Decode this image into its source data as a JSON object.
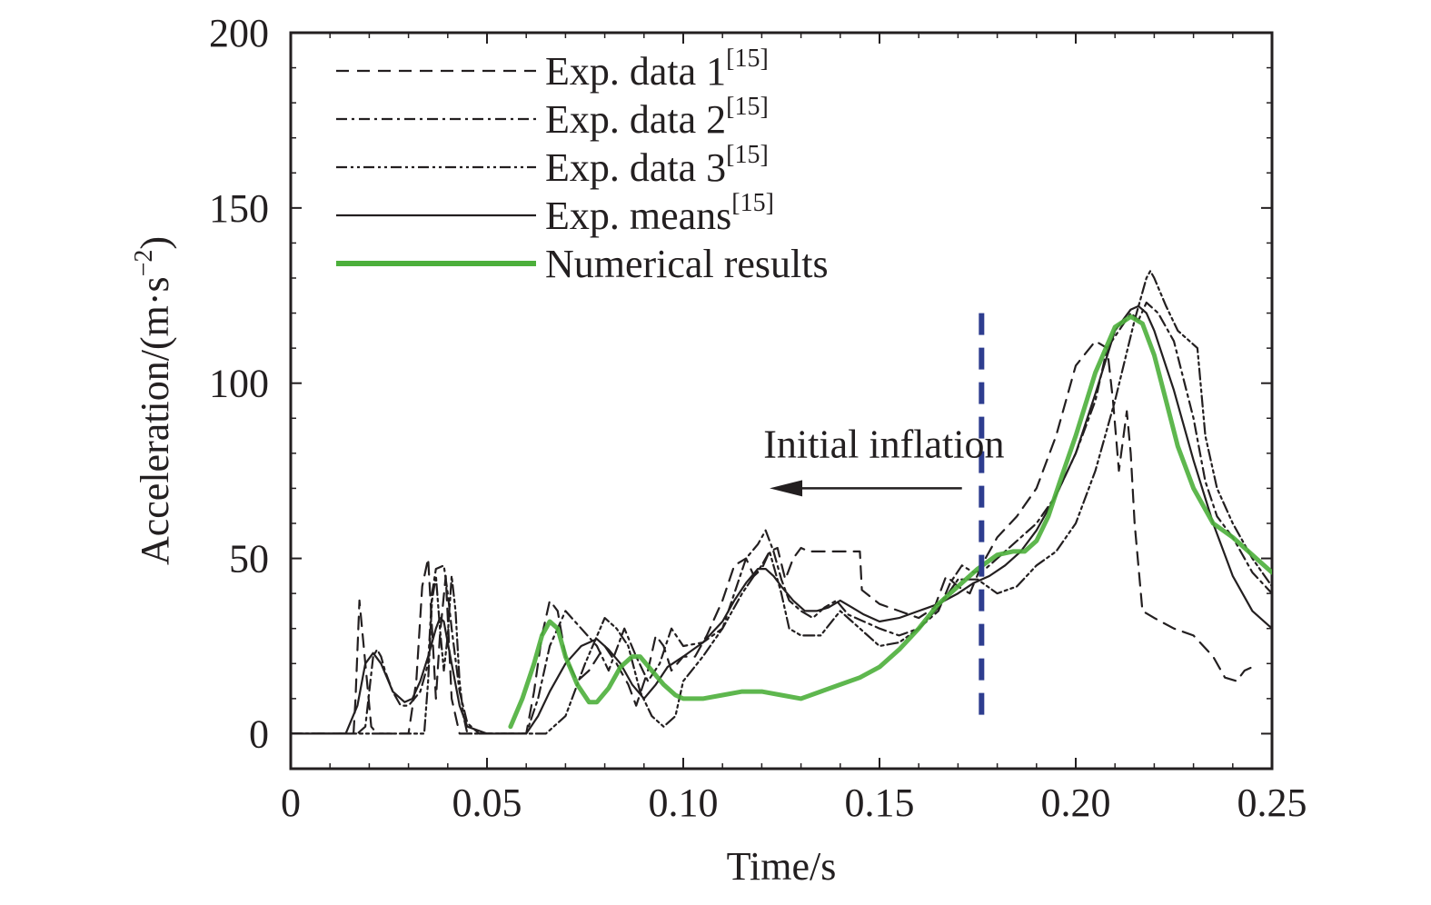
{
  "chart_data": {
    "type": "line",
    "title": "",
    "xlabel": "Time/s",
    "ylabel": "Acceleration/(m·s",
    "ylabel_exp": "−2",
    "ylabel_close": ")",
    "xlim": [
      0,
      0.25
    ],
    "ylim": [
      -10,
      200
    ],
    "xticks": [
      0,
      0.05,
      0.1,
      0.15,
      0.2,
      0.25
    ],
    "xtick_labels": [
      "0",
      "0.05",
      "0.10",
      "0.15",
      "0.20",
      "0.25"
    ],
    "yticks": [
      0,
      50,
      100,
      150,
      200
    ],
    "ytick_labels": [
      "0",
      "50",
      "100",
      "150",
      "200"
    ],
    "grid": false,
    "legend_position": "top-left",
    "annotation": {
      "text": "Initial inflation",
      "marker_x": 0.176,
      "marker_y_range": [
        4,
        120
      ],
      "arrow_from_x": 0.171,
      "arrow_to_x": 0.122,
      "arrow_y": 70,
      "marker_color": "#2e3d8f"
    },
    "series": [
      {
        "name": "Exp. data 1",
        "ref": "[15]",
        "style": "dashed",
        "color": "#231f20",
        "x": [
          0,
          0.016,
          0.0165,
          0.0175,
          0.019,
          0.0205,
          0.022,
          0.03,
          0.032,
          0.0335,
          0.035,
          0.036,
          0.037,
          0.038,
          0.0395,
          0.041,
          0.043,
          0.05,
          0.06,
          0.062,
          0.064,
          0.066,
          0.068,
          0.07,
          0.073,
          0.076,
          0.08,
          0.083,
          0.086,
          0.088,
          0.091,
          0.093,
          0.095,
          0.097,
          0.1,
          0.103,
          0.106,
          0.11,
          0.113,
          0.116,
          0.118,
          0.12,
          0.122,
          0.124,
          0.126,
          0.128,
          0.13,
          0.132,
          0.135,
          0.14,
          0.145,
          0.1455,
          0.15,
          0.155,
          0.16,
          0.164,
          0.167,
          0.17,
          0.173,
          0.176,
          0.18,
          0.185,
          0.19,
          0.195,
          0.2,
          0.205,
          0.208,
          0.2095,
          0.211,
          0.213,
          0.214,
          0.215,
          0.217,
          0.22,
          0.225,
          0.23,
          0.235,
          0.238,
          0.241,
          0.243,
          0.245
        ],
        "values": [
          0,
          0,
          10,
          38,
          20,
          2,
          0,
          0,
          15,
          42,
          50,
          30,
          10,
          28,
          45,
          10,
          0,
          0,
          0,
          12,
          28,
          38,
          35,
          22,
          15,
          18,
          25,
          20,
          14,
          8,
          18,
          28,
          25,
          18,
          22,
          22,
          28,
          38,
          48,
          50,
          45,
          47,
          52,
          53,
          44,
          50,
          53,
          52,
          52,
          52,
          52,
          41,
          37,
          35,
          33,
          36,
          45,
          42,
          40,
          48,
          56,
          62,
          70,
          85,
          105,
          112,
          110,
          95,
          75,
          92,
          80,
          60,
          35,
          33,
          30,
          28,
          22,
          16,
          15,
          18,
          19
        ]
      },
      {
        "name": "Exp. data 2",
        "ref": "[15]",
        "style": "dashdot",
        "color": "#231f20",
        "x": [
          0,
          0.017,
          0.019,
          0.02,
          0.021,
          0.022,
          0.023,
          0.024,
          0.026,
          0.028,
          0.03,
          0.033,
          0.035,
          0.036,
          0.037,
          0.039,
          0.04,
          0.041,
          0.043,
          0.045,
          0.048,
          0.05,
          0.054,
          0.06,
          0.063,
          0.066,
          0.07,
          0.074,
          0.078,
          0.081,
          0.085,
          0.088,
          0.091,
          0.094,
          0.097,
          0.1,
          0.105,
          0.11,
          0.113,
          0.116,
          0.119,
          0.121,
          0.123,
          0.125,
          0.127,
          0.13,
          0.133,
          0.136,
          0.139,
          0.142,
          0.146,
          0.15,
          0.155,
          0.16,
          0.165,
          0.168,
          0.171,
          0.174,
          0.177,
          0.18,
          0.185,
          0.19,
          0.195,
          0.2,
          0.205,
          0.208,
          0.211,
          0.214,
          0.216,
          0.218,
          0.221,
          0.225,
          0.23,
          0.233,
          0.236,
          0.24,
          0.245,
          0.25
        ],
        "values": [
          0,
          0,
          2,
          12,
          22,
          24,
          22,
          18,
          12,
          8,
          8,
          12,
          20,
          40,
          47,
          48,
          40,
          30,
          12,
          3,
          0,
          0,
          0,
          0,
          10,
          25,
          35,
          30,
          25,
          18,
          30,
          22,
          15,
          20,
          30,
          25,
          26,
          30,
          40,
          50,
          54,
          58,
          52,
          44,
          38,
          35,
          33,
          36,
          38,
          34,
          32,
          30,
          28,
          30,
          35,
          43,
          48,
          46,
          47,
          50,
          55,
          60,
          68,
          80,
          95,
          110,
          115,
          120,
          118,
          123,
          120,
          112,
          90,
          72,
          62,
          56,
          46,
          40
        ]
      },
      {
        "name": "Exp. data 3",
        "ref": "[15]",
        "style": "dashdotdot",
        "color": "#231f20",
        "x": [
          0,
          0.034,
          0.035,
          0.036,
          0.037,
          0.038,
          0.039,
          0.04,
          0.041,
          0.042,
          0.043,
          0.044,
          0.045,
          0.05,
          0.065,
          0.07,
          0.075,
          0.08,
          0.083,
          0.086,
          0.089,
          0.092,
          0.095,
          0.098,
          0.1,
          0.105,
          0.11,
          0.115,
          0.118,
          0.12,
          0.122,
          0.125,
          0.127,
          0.13,
          0.135,
          0.14,
          0.145,
          0.15,
          0.155,
          0.16,
          0.165,
          0.17,
          0.175,
          0.18,
          0.185,
          0.19,
          0.195,
          0.2,
          0.205,
          0.21,
          0.215,
          0.218,
          0.219,
          0.22,
          0.223,
          0.226,
          0.229,
          0.231,
          0.233,
          0.236,
          0.24,
          0.245,
          0.25
        ],
        "values": [
          0,
          0,
          15,
          38,
          45,
          30,
          18,
          28,
          45,
          35,
          15,
          5,
          0,
          0,
          0,
          5,
          20,
          33,
          30,
          25,
          12,
          5,
          2,
          5,
          15,
          22,
          30,
          40,
          45,
          48,
          52,
          40,
          30,
          28,
          28,
          35,
          30,
          25,
          26,
          30,
          36,
          44,
          44,
          40,
          42,
          48,
          52,
          60,
          75,
          95,
          118,
          130,
          132,
          130,
          122,
          115,
          112,
          110,
          85,
          70,
          60,
          50,
          42
        ]
      },
      {
        "name": "Exp. means",
        "ref": "[15]",
        "style": "solid",
        "color": "#231f20",
        "x": [
          0,
          0.014,
          0.017,
          0.019,
          0.021,
          0.023,
          0.026,
          0.029,
          0.031,
          0.033,
          0.035,
          0.037,
          0.038,
          0.039,
          0.041,
          0.043,
          0.045,
          0.05,
          0.055,
          0.06,
          0.063,
          0.066,
          0.07,
          0.074,
          0.078,
          0.081,
          0.084,
          0.087,
          0.09,
          0.093,
          0.096,
          0.1,
          0.105,
          0.11,
          0.113,
          0.116,
          0.119,
          0.121,
          0.123,
          0.125,
          0.128,
          0.131,
          0.134,
          0.137,
          0.14,
          0.143,
          0.146,
          0.15,
          0.155,
          0.16,
          0.165,
          0.17,
          0.174,
          0.178,
          0.182,
          0.186,
          0.19,
          0.195,
          0.2,
          0.205,
          0.21,
          0.214,
          0.216,
          0.218,
          0.22,
          0.225,
          0.23,
          0.235,
          0.24,
          0.245,
          0.25
        ],
        "values": [
          0,
          0,
          8,
          20,
          23,
          20,
          12,
          9,
          10,
          15,
          22,
          30,
          33,
          32,
          20,
          8,
          2,
          0,
          0,
          0,
          5,
          12,
          20,
          25,
          27,
          24,
          20,
          14,
          10,
          14,
          19,
          22,
          26,
          32,
          38,
          43,
          47,
          47,
          45,
          42,
          38,
          35,
          35,
          36,
          38,
          36,
          34,
          32,
          33,
          35,
          37,
          40,
          43,
          45,
          48,
          52,
          58,
          68,
          80,
          97,
          115,
          121,
          122,
          120,
          115,
          98,
          78,
          60,
          45,
          35,
          30
        ]
      },
      {
        "name": "Numerical results",
        "ref": "",
        "style": "solid",
        "color": "#4caf3b",
        "x": [
          0.056,
          0.059,
          0.062,
          0.064,
          0.066,
          0.068,
          0.07,
          0.073,
          0.076,
          0.078,
          0.081,
          0.084,
          0.087,
          0.089,
          0.092,
          0.095,
          0.098,
          0.1,
          0.105,
          0.11,
          0.115,
          0.12,
          0.125,
          0.13,
          0.135,
          0.14,
          0.145,
          0.15,
          0.155,
          0.16,
          0.165,
          0.17,
          0.175,
          0.18,
          0.184,
          0.187,
          0.19,
          0.193,
          0.196,
          0.2,
          0.205,
          0.21,
          0.214,
          0.217,
          0.22,
          0.223,
          0.226,
          0.23,
          0.235,
          0.24,
          0.245,
          0.25
        ],
        "values": [
          2,
          10,
          20,
          28,
          32,
          30,
          22,
          14,
          9,
          9,
          13,
          19,
          22,
          22,
          18,
          14,
          11,
          10,
          10,
          11,
          12,
          12,
          11,
          10,
          12,
          14,
          16,
          19,
          24,
          30,
          37,
          42,
          47,
          51,
          52,
          52,
          55,
          62,
          72,
          85,
          103,
          116,
          119,
          117,
          108,
          95,
          82,
          70,
          60,
          56,
          51,
          46
        ]
      }
    ]
  }
}
